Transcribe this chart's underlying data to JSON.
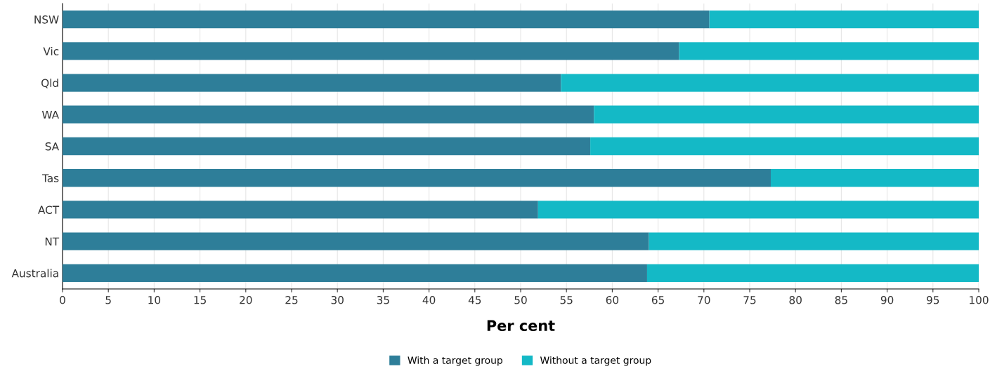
{
  "chart_data": {
    "type": "bar",
    "orientation": "horizontal",
    "stacked": true,
    "categories": [
      "NSW",
      "Vic",
      "Qld",
      "WA",
      "SA",
      "Tas",
      "ACT",
      "NT",
      "Australia"
    ],
    "series": [
      {
        "name": "With a target group",
        "color": "#2e7e99",
        "values": [
          70.6,
          67.3,
          54.4,
          58.0,
          57.6,
          77.3,
          51.9,
          64.0,
          63.8
        ]
      },
      {
        "name": "Without a target group",
        "color": "#14b9c6",
        "values": [
          29.4,
          32.7,
          45.6,
          42.0,
          42.4,
          22.7,
          48.1,
          36.0,
          36.2
        ]
      }
    ],
    "xlabel": "Per cent",
    "xlim": [
      0,
      100
    ],
    "xticks": [
      0,
      5,
      10,
      15,
      20,
      25,
      30,
      35,
      40,
      45,
      50,
      55,
      60,
      65,
      70,
      75,
      80,
      85,
      90,
      95,
      100
    ],
    "grid": "x",
    "legend": "bottom"
  }
}
